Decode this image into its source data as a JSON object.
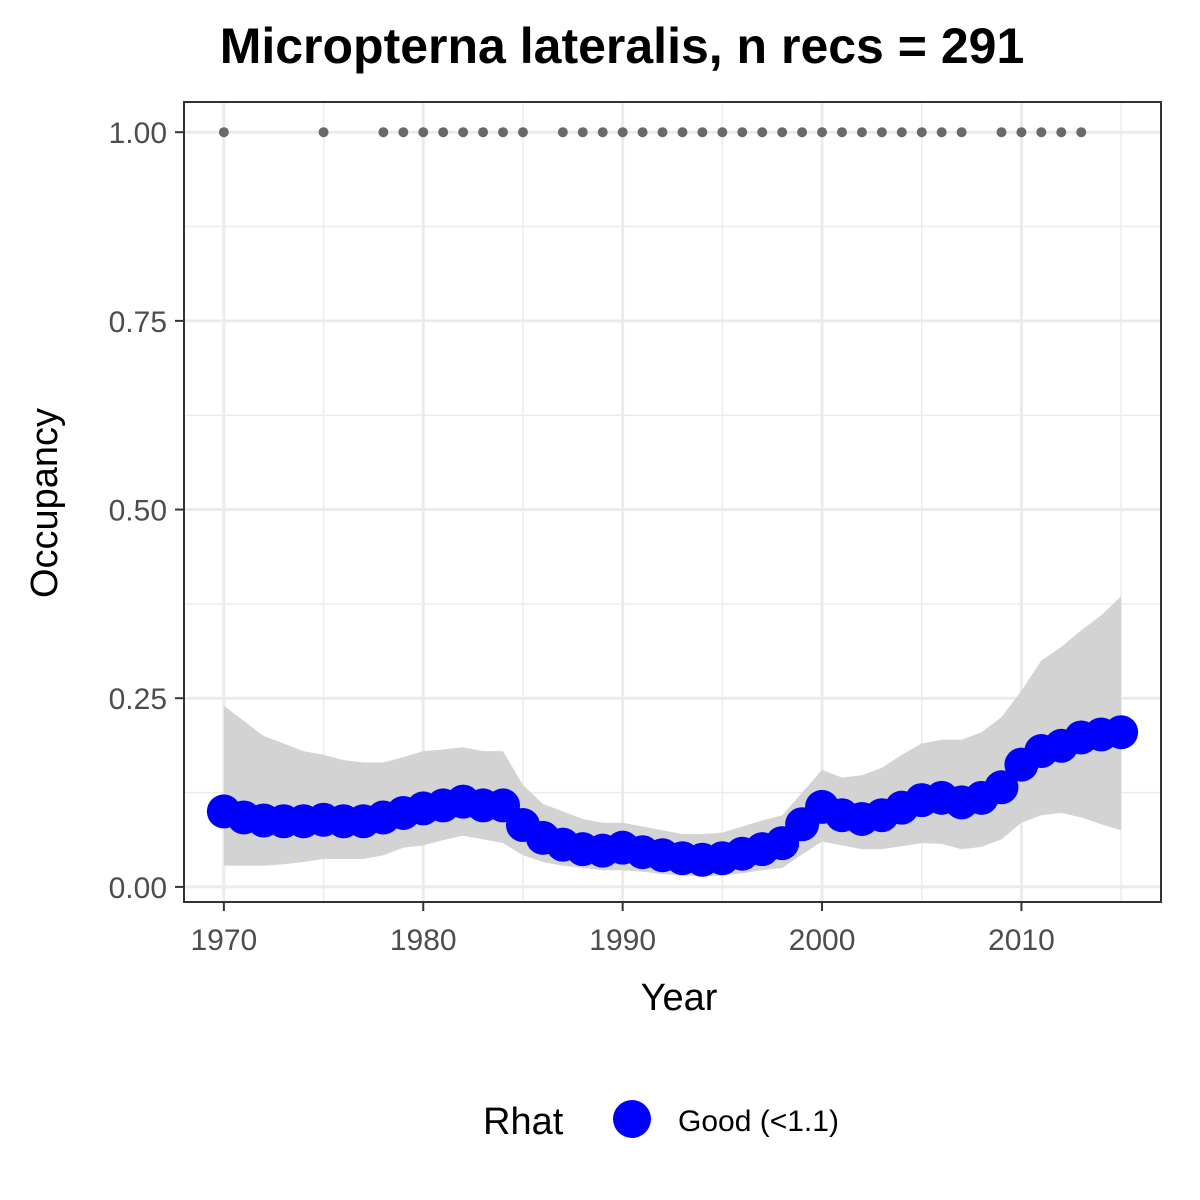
{
  "chart_data": {
    "type": "line",
    "title": "Micropterna lateralis, n recs = 291",
    "xlabel": "Year",
    "ylabel": "Occupancy",
    "xlim": [
      1968,
      2017
    ],
    "ylim": [
      -0.02,
      1.04
    ],
    "x_ticks": [
      1970,
      1980,
      1990,
      2000,
      2010
    ],
    "x_tick_labels": [
      "1970",
      "1980",
      "1990",
      "2000",
      "2010"
    ],
    "y_ticks": [
      0,
      0.25,
      0.5,
      0.75,
      1
    ],
    "y_tick_labels": [
      "0.00",
      "0.25",
      "0.50",
      "0.75",
      "1.00"
    ],
    "grid": true,
    "legend_position": "bottom",
    "legend": {
      "title": "Rhat",
      "items": [
        {
          "label": "Good (<1.1)",
          "color": "#0000ff"
        }
      ]
    },
    "colors": {
      "occupancy": "#0000ff",
      "ribbon": "#d3d3d3",
      "records": "#696969",
      "grid": "#ebebeb",
      "panel_border": "#333333"
    },
    "series": [
      {
        "name": "Good (<1.1)",
        "x": [
          1970,
          1971,
          1972,
          1973,
          1974,
          1975,
          1976,
          1977,
          1978,
          1979,
          1980,
          1981,
          1982,
          1983,
          1984,
          1985,
          1986,
          1987,
          1988,
          1989,
          1990,
          1991,
          1992,
          1993,
          1994,
          1995,
          1996,
          1997,
          1998,
          1999,
          2000,
          2001,
          2002,
          2003,
          2004,
          2005,
          2006,
          2007,
          2008,
          2009,
          2010,
          2011,
          2012,
          2013,
          2014,
          2015
        ],
        "y": [
          0.1,
          0.092,
          0.088,
          0.087,
          0.087,
          0.089,
          0.087,
          0.087,
          0.092,
          0.098,
          0.104,
          0.108,
          0.113,
          0.108,
          0.108,
          0.082,
          0.065,
          0.056,
          0.05,
          0.048,
          0.052,
          0.046,
          0.042,
          0.038,
          0.036,
          0.038,
          0.044,
          0.05,
          0.058,
          0.083,
          0.106,
          0.095,
          0.09,
          0.095,
          0.105,
          0.115,
          0.118,
          0.112,
          0.118,
          0.132,
          0.162,
          0.18,
          0.187,
          0.198,
          0.202,
          0.205
        ]
      }
    ],
    "ribbon": {
      "x": [
        1970,
        1971,
        1972,
        1973,
        1974,
        1975,
        1976,
        1977,
        1978,
        1979,
        1980,
        1981,
        1982,
        1983,
        1984,
        1985,
        1986,
        1987,
        1988,
        1989,
        1990,
        1991,
        1992,
        1993,
        1994,
        1995,
        1996,
        1997,
        1998,
        1999,
        2000,
        2001,
        2002,
        2003,
        2004,
        2005,
        2006,
        2007,
        2008,
        2009,
        2010,
        2011,
        2012,
        2013,
        2014,
        2015
      ],
      "lower": [
        0.028,
        0.028,
        0.028,
        0.03,
        0.033,
        0.037,
        0.037,
        0.037,
        0.042,
        0.052,
        0.055,
        0.062,
        0.068,
        0.063,
        0.058,
        0.042,
        0.033,
        0.028,
        0.025,
        0.022,
        0.022,
        0.02,
        0.017,
        0.015,
        0.014,
        0.015,
        0.018,
        0.022,
        0.025,
        0.043,
        0.06,
        0.055,
        0.05,
        0.05,
        0.054,
        0.058,
        0.057,
        0.05,
        0.053,
        0.063,
        0.085,
        0.095,
        0.098,
        0.092,
        0.083,
        0.075
      ],
      "upper": [
        0.24,
        0.22,
        0.2,
        0.19,
        0.18,
        0.175,
        0.168,
        0.165,
        0.165,
        0.172,
        0.18,
        0.182,
        0.185,
        0.18,
        0.18,
        0.135,
        0.11,
        0.1,
        0.09,
        0.085,
        0.085,
        0.08,
        0.075,
        0.07,
        0.07,
        0.072,
        0.08,
        0.088,
        0.095,
        0.125,
        0.155,
        0.145,
        0.148,
        0.158,
        0.175,
        0.19,
        0.195,
        0.195,
        0.205,
        0.225,
        0.26,
        0.3,
        0.318,
        0.34,
        0.36,
        0.385
      ]
    },
    "records": {
      "x": [
        1970,
        1975,
        1978,
        1979,
        1980,
        1981,
        1982,
        1983,
        1984,
        1985,
        1987,
        1988,
        1989,
        1990,
        1991,
        1992,
        1993,
        1994,
        1995,
        1996,
        1997,
        1998,
        1999,
        2000,
        2001,
        2002,
        2003,
        2004,
        2005,
        2006,
        2007,
        2009,
        2010,
        2011,
        2012,
        2013
      ],
      "y": 1
    }
  }
}
